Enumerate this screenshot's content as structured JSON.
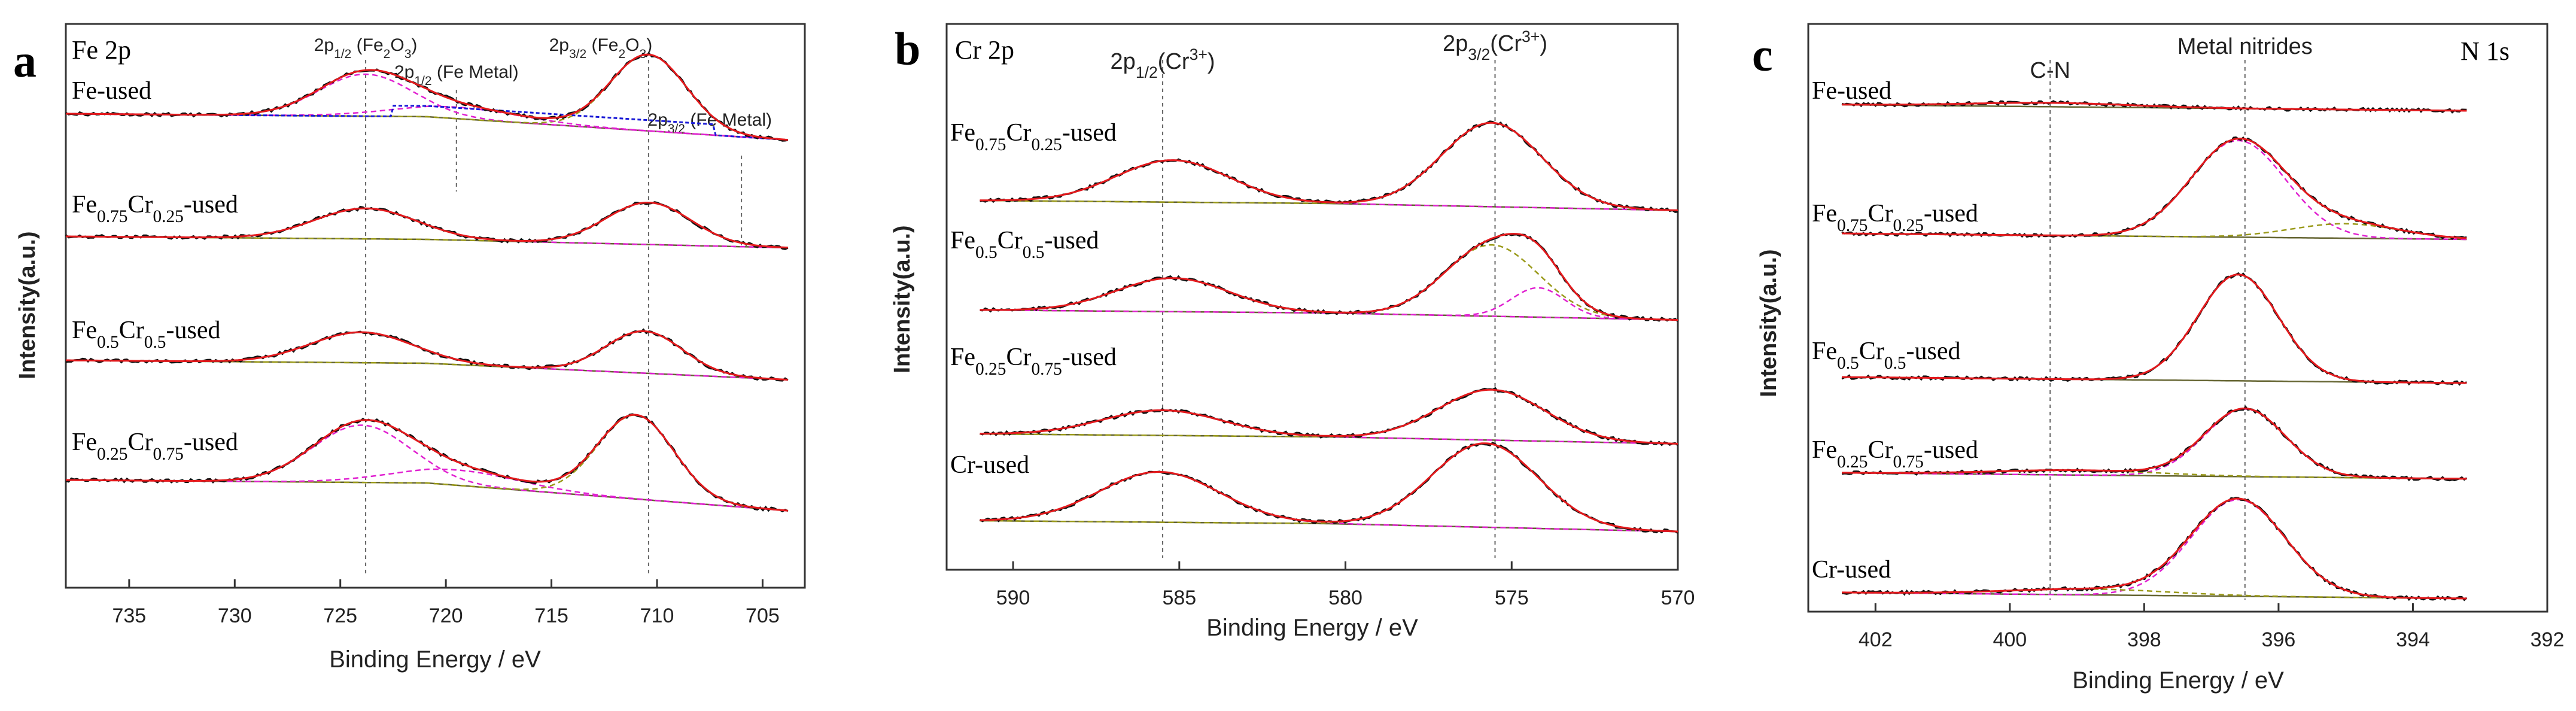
{
  "chart_data": [
    {
      "type": "line",
      "panel_letter": "a",
      "title": "Fe 2p",
      "xlabel": "Binding Energy / eV",
      "ylabel": "Intensity(a.u.)",
      "xlim": [
        738,
        703
      ],
      "xticks": [
        735,
        730,
        725,
        720,
        715,
        710,
        705
      ],
      "annotations": [
        {
          "label": "2p",
          "sub": "1/2",
          "rest": " (Fe",
          "sub2": "2",
          "rest2": "O",
          "sub3": "3",
          "rest3": ")",
          "x": 723.8
        },
        {
          "label": "2p",
          "sub": "1/2",
          "rest": " (Fe Metal)",
          "x": 719.5
        },
        {
          "label": "2p",
          "sub": "3/2",
          "rest": " (Fe",
          "sub2": "2",
          "rest2": "O",
          "sub3": "3",
          "rest3": ")",
          "x": 710.4
        },
        {
          "label": "2p",
          "sub": "3/2",
          "rest": " (Fe Metal)",
          "x": 706
        }
      ],
      "reference_lines": [
        723.8,
        710.4
      ],
      "series": [
        {
          "name": "Fe-used",
          "parts": [
            {
              "t": "Fe-used"
            }
          ],
          "peaks": [
            [
              723.8,
              0.55,
              2.2
            ],
            [
              710.4,
              1.0,
              1.8
            ],
            [
              719.5,
              0.15,
              3.0
            ]
          ],
          "baseline_drop": 0.45
        },
        {
          "name": "Fe0.75Cr0.25-used",
          "parts": [
            {
              "t": "Fe"
            },
            {
              "s": "0.75"
            },
            {
              "t": "Cr"
            },
            {
              "s": "0.25"
            },
            {
              "t": "-used"
            }
          ],
          "peaks": [
            [
              723.8,
              0.4,
              2.4
            ],
            [
              710.4,
              0.55,
              2.0
            ]
          ],
          "baseline_drop": 0.12
        },
        {
          "name": "Fe0.5Cr0.5-used",
          "parts": [
            {
              "t": "Fe"
            },
            {
              "s": "0.5"
            },
            {
              "t": "Cr"
            },
            {
              "s": "0.5"
            },
            {
              "t": "-used"
            }
          ],
          "peaks": [
            [
              724,
              0.4,
              2.4
            ],
            [
              710.6,
              0.55,
              1.8
            ]
          ],
          "baseline_drop": 0.3
        },
        {
          "name": "Fe0.25Cr0.75-used",
          "parts": [
            {
              "t": "Fe"
            },
            {
              "s": "0.25"
            },
            {
              "t": "Cr"
            },
            {
              "s": "0.75"
            },
            {
              "t": "-used"
            }
          ],
          "peaks": [
            [
              724,
              0.75,
              2.3
            ],
            [
              711,
              1.1,
              1.8
            ],
            [
              719.5,
              0.2,
              3.0
            ]
          ],
          "baseline_drop": 0.55
        }
      ]
    },
    {
      "type": "line",
      "panel_letter": "b",
      "title": "Cr 2p",
      "xlabel": "Binding Energy / eV",
      "ylabel": "Intensity(a.u.)",
      "xlim": [
        592,
        570
      ],
      "xticks": [
        590,
        585,
        580,
        575,
        570
      ],
      "annotations": [
        {
          "label": "2p",
          "sub": "1/2",
          "rest": "(Cr",
          "sup": "3+",
          "rest2": ")",
          "x": 585.5
        },
        {
          "label": "2p",
          "sub": "3/2",
          "rest": "(Cr",
          "sup": "3+",
          "rest2": ")",
          "x": 575.5
        }
      ],
      "reference_lines": [
        585.5,
        575.5
      ],
      "series": [
        {
          "name": "Fe0.75Cr0.25-used",
          "parts": [
            {
              "t": "Fe"
            },
            {
              "s": "0.75"
            },
            {
              "t": "Cr"
            },
            {
              "s": "0.25"
            },
            {
              "t": "-used"
            }
          ],
          "peaks": [
            [
              585.2,
              0.5,
              1.7
            ],
            [
              575.6,
              1.0,
              1.5
            ]
          ],
          "baseline_drop": 0.08
        },
        {
          "name": "Fe0.5Cr0.5-used",
          "parts": [
            {
              "t": "Fe"
            },
            {
              "s": "0.5"
            },
            {
              "t": "Cr"
            },
            {
              "s": "0.5"
            },
            {
              "t": "-used"
            }
          ],
          "peaks": [
            [
              585.2,
              0.4,
              1.7
            ],
            [
              575.6,
              0.85,
              1.4
            ],
            [
              574.2,
              0.35,
              0.8
            ]
          ],
          "baseline_drop": 0.08
        },
        {
          "name": "Fe0.25Cr0.75-used",
          "parts": [
            {
              "t": "Fe"
            },
            {
              "s": "0.25"
            },
            {
              "t": "Cr"
            },
            {
              "s": "0.75"
            },
            {
              "t": "-used"
            }
          ],
          "peaks": [
            [
              585.5,
              0.3,
              1.8
            ],
            [
              575.6,
              0.6,
              1.6
            ]
          ],
          "baseline_drop": 0.08
        },
        {
          "name": "Cr-used",
          "parts": [
            {
              "t": "Cr-used"
            }
          ],
          "peaks": [
            [
              585.6,
              0.6,
              1.8
            ],
            [
              575.8,
              1.0,
              1.6
            ]
          ],
          "baseline_drop": 0.1
        }
      ]
    },
    {
      "type": "line",
      "panel_letter": "c",
      "title": "N 1s",
      "xlabel": "Binding Energy / eV",
      "ylabel": "Intensity(a.u.)",
      "xlim": [
        403,
        392
      ],
      "xticks": [
        402,
        400,
        398,
        396,
        394,
        392
      ],
      "annotations": [
        {
          "label": "C-N",
          "x": 399.4
        },
        {
          "label": "Metal nitrides",
          "x": 396.5
        }
      ],
      "reference_lines": [
        399.4,
        396.5
      ],
      "series": [
        {
          "name": "Fe-used",
          "parts": [
            {
              "t": "Fe-used"
            }
          ],
          "peaks": [
            [
              399.4,
              0.04,
              1.2
            ]
          ],
          "baseline_drop": 0.0
        },
        {
          "name": "Fe0.75Cr0.25-used",
          "parts": [
            {
              "t": "Fe"
            },
            {
              "s": "0.75"
            },
            {
              "t": "Cr"
            },
            {
              "s": "0.25"
            },
            {
              "t": "-used"
            }
          ],
          "peaks": [
            [
              396.6,
              1.0,
              0.7
            ],
            [
              395.0,
              0.15,
              0.8
            ]
          ],
          "baseline_drop": 0.0
        },
        {
          "name": "Fe0.5Cr0.5-used",
          "parts": [
            {
              "t": "Fe"
            },
            {
              "s": "0.5"
            },
            {
              "t": "Cr"
            },
            {
              "s": "0.5"
            },
            {
              "t": "-used"
            }
          ],
          "peaks": [
            [
              396.6,
              1.1,
              0.6
            ]
          ],
          "baseline_drop": 0.0
        },
        {
          "name": "Fe0.25Cr0.75-used",
          "parts": [
            {
              "t": "Fe"
            },
            {
              "s": "0.25"
            },
            {
              "t": "Cr"
            },
            {
              "s": "0.75"
            },
            {
              "t": "-used"
            }
          ],
          "peaks": [
            [
              396.5,
              0.7,
              0.6
            ],
            [
              399.0,
              0.05,
              1.2
            ]
          ],
          "baseline_drop": 0.0
        },
        {
          "name": "Cr-used",
          "parts": [
            {
              "t": "Cr-used"
            }
          ],
          "peaks": [
            [
              396.6,
              1.0,
              0.7
            ],
            [
              398.8,
              0.06,
              1.2
            ]
          ],
          "baseline_drop": 0.0
        }
      ]
    }
  ],
  "colors": {
    "raw": "#111111",
    "fit": "#e3191c",
    "component": "#e020d0",
    "component2": "#9a9a1a",
    "background": "#666633",
    "metal": "#1a1ad6"
  }
}
